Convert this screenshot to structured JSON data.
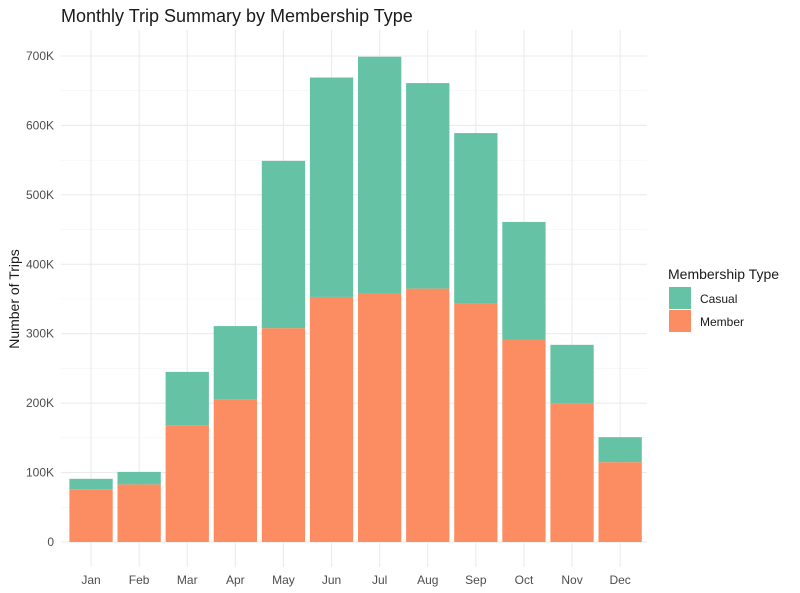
{
  "chart_data": {
    "type": "bar",
    "stacked": true,
    "title": "Monthly Trip Summary by Membership Type",
    "xlabel": "",
    "ylabel": "Number of Trips",
    "categories": [
      "Jan",
      "Feb",
      "Mar",
      "Apr",
      "May",
      "Jun",
      "Jul",
      "Aug",
      "Sep",
      "Oct",
      "Nov",
      "Dec"
    ],
    "series": [
      {
        "name": "Casual",
        "color": "#66c2a5",
        "values": [
          15000,
          18000,
          77000,
          106000,
          241000,
          316000,
          341000,
          296000,
          246000,
          170000,
          84000,
          36000
        ]
      },
      {
        "name": "Member",
        "color": "#fc8d62",
        "values": [
          76000,
          83000,
          168000,
          205000,
          308000,
          353000,
          358000,
          365000,
          343000,
          291000,
          200000,
          115000
        ]
      }
    ],
    "stack_order_bottom_to_top": [
      "Member",
      "Casual"
    ],
    "ylim": [
      0,
      700000
    ],
    "yticks": [
      0,
      100000,
      200000,
      300000,
      400000,
      500000,
      600000,
      700000
    ],
    "ytick_labels": [
      "0",
      "100K",
      "200K",
      "300K",
      "400K",
      "500K",
      "600K",
      "700K"
    ],
    "grid": true,
    "legend": {
      "title": "Membership Type",
      "position": "right",
      "entries": [
        "Casual",
        "Member"
      ]
    },
    "colors": {
      "background": "#ffffff",
      "grid": "#ebebeb"
    }
  }
}
